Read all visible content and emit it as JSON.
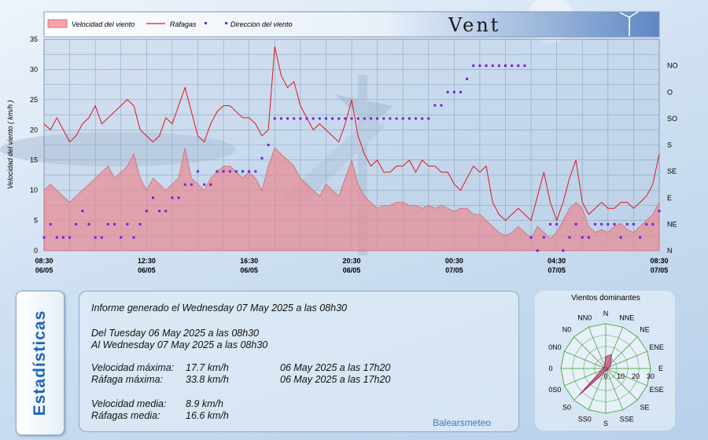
{
  "header": {
    "title": "Vent"
  },
  "legend": {
    "speed": "Velocidad del viento",
    "gust": "Ráfagas",
    "dir": "Direccion del viento"
  },
  "stats_tab": "Estadísticas",
  "report": {
    "line1": "Informe generado el Wednesday 07 May 2025 a las 08h30",
    "line2": "Del Tuesday 06 May 2025 a las 08h30",
    "line3": "Al Wednesday 07 May 2025 a las 08h30",
    "rows": [
      {
        "label": "Velocidad máxima:",
        "value": "17.7 km/h",
        "when": "06 May 2025 a las 17h20"
      },
      {
        "label": "Ráfaga máxima:",
        "value": "33.8 km/h",
        "when": "06 May 2025 a las 17h20"
      },
      {
        "label": "Velocidad media:",
        "value": "8.9 km/h",
        "when": ""
      },
      {
        "label": "Ráfagas media:",
        "value": "16.6 km/h",
        "when": ""
      }
    ],
    "credit": "Balearsmeteo"
  },
  "colors": {
    "speed_fill": "#e88a92",
    "gust_line": "#e0161e",
    "dir_marker": "#7a1ae8",
    "accent_text": "#1f66b8"
  },
  "chart_data": [
    {
      "type": "line",
      "ylabel": "Velocidad del viento ( km/h )",
      "ylim": [
        0,
        35
      ],
      "yticks": [
        0,
        5,
        10,
        15,
        20,
        25,
        30,
        35
      ],
      "xlim": [
        0,
        24
      ],
      "x_ticks": [
        {
          "x": 0,
          "time": "08:30",
          "date": "06/05"
        },
        {
          "x": 4,
          "time": "12:30",
          "date": "06/05"
        },
        {
          "x": 8,
          "time": "16:30",
          "date": "06/05"
        },
        {
          "x": 12,
          "time": "20:30",
          "date": "06/05"
        },
        {
          "x": 16,
          "time": "00:30",
          "date": "07/05"
        },
        {
          "x": 20,
          "time": "04:30",
          "date": "07/05"
        },
        {
          "x": 24,
          "time": "08:30",
          "date": "07/05"
        }
      ],
      "y2_ticks": [
        "N",
        "NE",
        "E",
        "SE",
        "S",
        "SO",
        "O",
        "NO"
      ],
      "grid": true,
      "legend_position": "top-left",
      "speed": {
        "name": "Velocidad del viento",
        "x": [
          0,
          0.25,
          0.5,
          0.75,
          1,
          1.25,
          1.5,
          1.75,
          2,
          2.25,
          2.5,
          2.75,
          3,
          3.25,
          3.5,
          3.75,
          4,
          4.25,
          4.5,
          4.75,
          5,
          5.25,
          5.5,
          5.75,
          6,
          6.25,
          6.5,
          6.75,
          7,
          7.25,
          7.5,
          7.75,
          8,
          8.25,
          8.5,
          8.75,
          9,
          9.25,
          9.5,
          9.75,
          10,
          10.25,
          10.5,
          10.75,
          11,
          11.25,
          11.5,
          11.75,
          12,
          12.25,
          12.5,
          12.75,
          13,
          13.25,
          13.5,
          13.75,
          14,
          14.25,
          14.5,
          14.75,
          15,
          15.25,
          15.5,
          15.75,
          16,
          16.25,
          16.5,
          16.75,
          17,
          17.25,
          17.5,
          17.75,
          18,
          18.25,
          18.5,
          18.75,
          19,
          19.25,
          19.5,
          19.75,
          20,
          20.25,
          20.5,
          20.75,
          21,
          21.25,
          21.5,
          21.75,
          22,
          22.25,
          22.5,
          22.75,
          23,
          23.25,
          23.5,
          23.75,
          24
        ],
        "values": [
          10,
          11,
          10,
          9,
          8,
          9,
          10,
          11,
          12,
          13,
          14,
          12,
          13,
          14,
          16,
          12,
          10,
          12,
          11,
          10,
          11,
          12,
          17,
          12,
          11,
          10,
          12,
          13,
          14,
          14,
          13,
          12,
          13,
          12,
          10,
          14,
          17,
          16,
          15,
          14,
          12,
          11,
          10,
          9,
          11,
          10,
          9,
          12,
          15,
          11,
          9,
          8,
          7,
          7.5,
          7.5,
          8,
          8,
          7.5,
          7.5,
          7,
          7.5,
          7,
          7.5,
          7,
          6.5,
          7,
          7,
          6,
          6,
          5,
          4,
          3,
          2.5,
          3,
          4,
          3,
          2,
          4,
          3,
          2,
          3,
          5,
          7,
          8,
          7,
          4,
          3,
          3.5,
          3,
          4,
          4.5,
          3.5,
          3,
          4,
          5,
          6,
          8
        ]
      },
      "gust": {
        "name": "Ráfagas",
        "x": [
          0,
          0.25,
          0.5,
          0.75,
          1,
          1.25,
          1.5,
          1.75,
          2,
          2.25,
          2.5,
          2.75,
          3,
          3.25,
          3.5,
          3.75,
          4,
          4.25,
          4.5,
          4.75,
          5,
          5.25,
          5.5,
          5.75,
          6,
          6.25,
          6.5,
          6.75,
          7,
          7.25,
          7.5,
          7.75,
          8,
          8.25,
          8.5,
          8.75,
          9,
          9.25,
          9.5,
          9.75,
          10,
          10.25,
          10.5,
          10.75,
          11,
          11.25,
          11.5,
          11.75,
          12,
          12.25,
          12.5,
          12.75,
          13,
          13.25,
          13.5,
          13.75,
          14,
          14.25,
          14.5,
          14.75,
          15,
          15.25,
          15.5,
          15.75,
          16,
          16.25,
          16.5,
          16.75,
          17,
          17.25,
          17.5,
          17.75,
          18,
          18.25,
          18.5,
          18.75,
          19,
          19.25,
          19.5,
          19.75,
          20,
          20.25,
          20.5,
          20.75,
          21,
          21.25,
          21.5,
          21.75,
          22,
          22.25,
          22.5,
          22.75,
          23,
          23.25,
          23.5,
          23.75,
          24
        ],
        "values": [
          21,
          20,
          22,
          20,
          18,
          19,
          21,
          22,
          24,
          21,
          22,
          23,
          24,
          25,
          24,
          20,
          19,
          18,
          19,
          22,
          21,
          24,
          27,
          23,
          19,
          18,
          21,
          23,
          24,
          24,
          23,
          22,
          22,
          21,
          19,
          20,
          33.8,
          29,
          27,
          28,
          24,
          22,
          20,
          21,
          20,
          19,
          18,
          21,
          25,
          19,
          16,
          14,
          15,
          13,
          13,
          14,
          14,
          15,
          13,
          15,
          14,
          14,
          13,
          13,
          11,
          10,
          12,
          14,
          13,
          14,
          8,
          6,
          5,
          6,
          7,
          6,
          5,
          9,
          13,
          8,
          5,
          8,
          12,
          15,
          8,
          6,
          7,
          8,
          7,
          7,
          8,
          8,
          7,
          8,
          9,
          11,
          16
        ]
      },
      "direction": {
        "name": "Direccion del viento",
        "x": [
          0,
          0.25,
          0.5,
          0.75,
          1,
          1.25,
          1.5,
          1.75,
          2,
          2.25,
          2.5,
          2.75,
          3,
          3.25,
          3.5,
          3.75,
          4,
          4.25,
          4.5,
          4.75,
          5,
          5.25,
          5.5,
          5.75,
          6,
          6.25,
          6.5,
          6.75,
          7,
          7.25,
          7.5,
          7.75,
          8,
          8.25,
          8.5,
          8.75,
          9,
          9.25,
          9.5,
          9.75,
          10,
          10.25,
          10.5,
          10.75,
          11,
          11.25,
          11.5,
          11.75,
          12,
          12.25,
          12.5,
          12.75,
          13,
          13.25,
          13.5,
          13.75,
          14,
          14.25,
          14.5,
          14.75,
          15,
          15.25,
          15.5,
          15.75,
          16,
          16.25,
          16.5,
          16.75,
          17,
          17.25,
          17.5,
          17.75,
          18,
          18.25,
          18.5,
          18.75,
          19,
          19.25,
          19.5,
          19.75,
          20,
          20.25,
          20.5,
          20.75,
          21,
          21.25,
          21.5,
          21.75,
          22,
          22.25,
          22.5,
          22.75,
          23,
          23.25,
          23.5,
          23.75,
          24
        ],
        "values": [
          0.5,
          1,
          0.5,
          0.5,
          0.5,
          1,
          1.5,
          1,
          0.5,
          0.5,
          1,
          1,
          0.5,
          1,
          0.5,
          1,
          1.5,
          2,
          1.5,
          1.5,
          2,
          2,
          2.5,
          2.5,
          3,
          2.5,
          2.5,
          3,
          3,
          3,
          3,
          3,
          3,
          3,
          3.5,
          4,
          5,
          5,
          5,
          5,
          5,
          5,
          5,
          5,
          5,
          5,
          5,
          5,
          5,
          5,
          5,
          5,
          5,
          5,
          5,
          5,
          5,
          5,
          5,
          5,
          5,
          5.5,
          5.5,
          6,
          6,
          6,
          6.5,
          7,
          7,
          7,
          7,
          7,
          7,
          7,
          7,
          7,
          0.5,
          0,
          0.5,
          1,
          1,
          0,
          0.5,
          1,
          0.5,
          0.5,
          1,
          1,
          1,
          1,
          0.5,
          1,
          1,
          0.5,
          1,
          1,
          1.5
        ]
      }
    },
    {
      "type": "radar",
      "title": "Vientos dominantes",
      "directions": [
        "N",
        "NNE",
        "NE",
        "ENE",
        "E",
        "ESE",
        "SE",
        "SSE",
        "S",
        "SSO",
        "SO",
        "OSO",
        "O",
        "ONO",
        "NO",
        "NNO"
      ],
      "direction_labels": [
        "N",
        "NNE",
        "NE",
        "ENE",
        "E",
        "ESE",
        "SE",
        "SSE",
        "S",
        "SS0",
        "S0",
        "0S0",
        "0",
        "0N0",
        "N0",
        "NN0"
      ],
      "radial_ticks": [
        0,
        10,
        20,
        30
      ],
      "rmax": 30,
      "values": [
        8,
        10,
        5,
        3,
        2,
        1,
        2,
        1,
        1,
        3,
        25,
        3,
        2,
        2,
        1,
        2
      ]
    }
  ]
}
